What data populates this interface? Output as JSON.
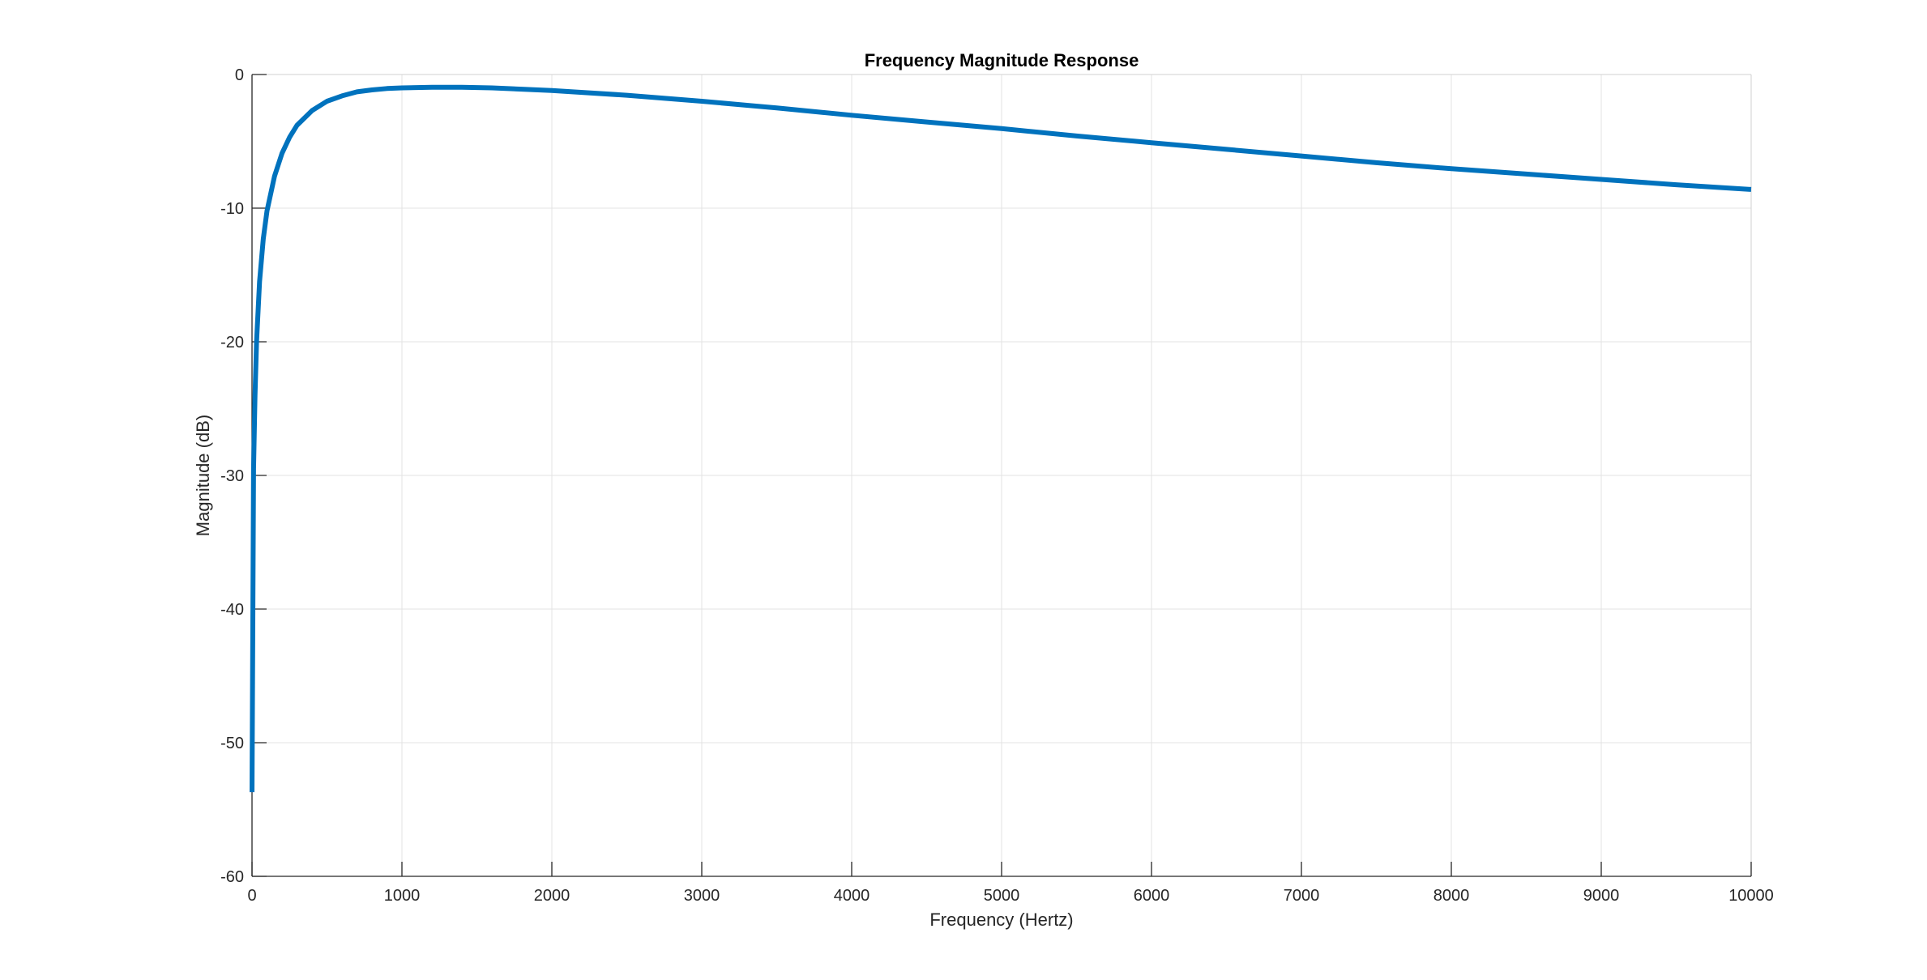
{
  "chart_data": {
    "type": "line",
    "title": "Frequency Magnitude Response",
    "xlabel": "Frequency (Hertz)",
    "ylabel": "Magnitude (dB)",
    "xlim": [
      0,
      10000
    ],
    "ylim": [
      -60,
      0
    ],
    "xticks": [
      0,
      1000,
      2000,
      3000,
      4000,
      5000,
      6000,
      7000,
      8000,
      9000,
      10000
    ],
    "yticks": [
      -60,
      -50,
      -40,
      -30,
      -20,
      -10,
      0
    ],
    "grid": true,
    "series": [
      {
        "color": "#0072BD",
        "x": [
          0,
          10,
          20,
          30,
          50,
          75,
          100,
          150,
          200,
          250,
          300,
          400,
          500,
          600,
          700,
          800,
          900,
          1000,
          1200,
          1400,
          1600,
          1800,
          2000,
          2500,
          3000,
          3500,
          4000,
          4500,
          5000,
          5500,
          6000,
          6500,
          7000,
          7500,
          8000,
          8500,
          9000,
          9500,
          10000
        ],
        "y": [
          -53.7,
          -29.5,
          -24.0,
          -20.0,
          -15.5,
          -12.3,
          -10.2,
          -7.6,
          -5.9,
          -4.7,
          -3.8,
          -2.7,
          -2.0,
          -1.6,
          -1.3,
          -1.15,
          -1.05,
          -1.0,
          -0.95,
          -0.95,
          -1.0,
          -1.1,
          -1.2,
          -1.55,
          -2.0,
          -2.5,
          -3.05,
          -3.55,
          -4.05,
          -4.6,
          -5.1,
          -5.6,
          -6.1,
          -6.6,
          -7.05,
          -7.45,
          -7.85,
          -8.25,
          -8.6
        ]
      }
    ]
  }
}
